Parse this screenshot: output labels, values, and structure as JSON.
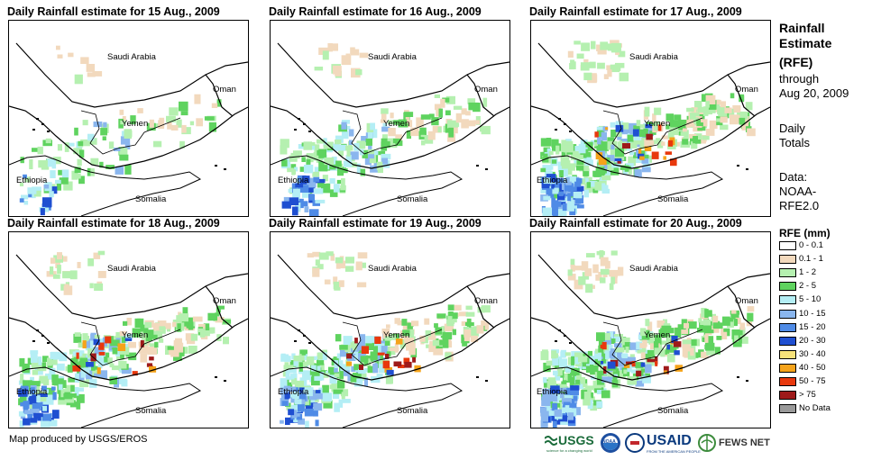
{
  "panels": [
    {
      "title": "Daily Rainfall estimate for 15 Aug., 2009",
      "level": 1
    },
    {
      "title": "Daily Rainfall estimate for 16 Aug., 2009",
      "level": 2
    },
    {
      "title": "Daily Rainfall estimate for 17 Aug., 2009",
      "level": 4
    },
    {
      "title": "Daily Rainfall estimate for 18 Aug., 2009",
      "level": 3
    },
    {
      "title": "Daily Rainfall estimate for 19 Aug., 2009",
      "level": 3
    },
    {
      "title": "Daily Rainfall estimate for 20 Aug., 2009",
      "level": 4
    }
  ],
  "places": {
    "saudi_arabia": "Saudi Arabia",
    "oman": "Oman",
    "yemen": "Yemen",
    "ethiopia": "Ethiopia",
    "somalia": "Somalia"
  },
  "legend": {
    "title_l1": "Rainfall",
    "title_l2": "Estimate",
    "title_l3": "(RFE)",
    "through": "through",
    "date": "Aug 20, 2009",
    "daily_l1": "Daily",
    "daily_l2": "Totals",
    "data_l1": "Data:",
    "data_l2": "NOAA-",
    "data_l3": "RFE2.0",
    "rfe_title": "RFE (mm)",
    "classes": [
      {
        "label": "0 - 0.1",
        "color": "#ffffff"
      },
      {
        "label": "0.1 - 1",
        "color": "#f2d9bd"
      },
      {
        "label": "1 - 2",
        "color": "#b5f0b0"
      },
      {
        "label": "2 - 5",
        "color": "#5fd35f"
      },
      {
        "label": "5 - 10",
        "color": "#b4eef5"
      },
      {
        "label": "10 - 15",
        "color": "#8ab6ee"
      },
      {
        "label": "15 - 20",
        "color": "#4f8be6"
      },
      {
        "label": "20 - 30",
        "color": "#1f4fd1"
      },
      {
        "label": "30 - 40",
        "color": "#f7e27a"
      },
      {
        "label": "40 - 50",
        "color": "#f5a31a"
      },
      {
        "label": "50 - 75",
        "color": "#e8380d"
      },
      {
        "label": "> 75",
        "color": "#9e1a1a"
      },
      {
        "label": "No Data",
        "color": "#999999"
      }
    ]
  },
  "footer": {
    "credit": "Map produced by USGS/EROS"
  },
  "logos": {
    "usgs": "USGS",
    "usgs_tag": "science for a changing world",
    "noaa": "NOAA",
    "usaid": "USAID",
    "usaid_tag": "FROM THE AMERICAN PEOPLE",
    "fews": "FEWS NET"
  }
}
